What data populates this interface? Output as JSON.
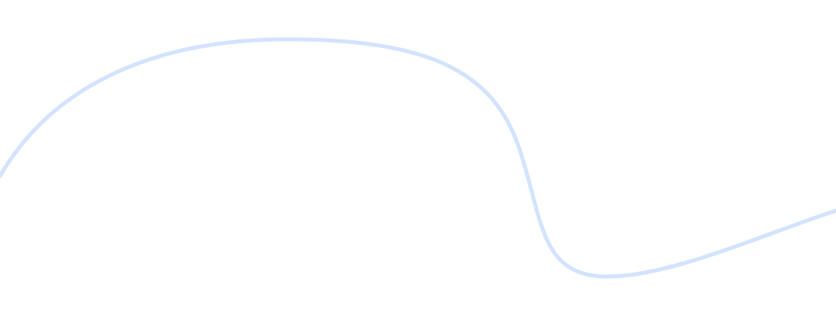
{
  "decoration": {
    "curve_color": "#d3e3fd"
  }
}
